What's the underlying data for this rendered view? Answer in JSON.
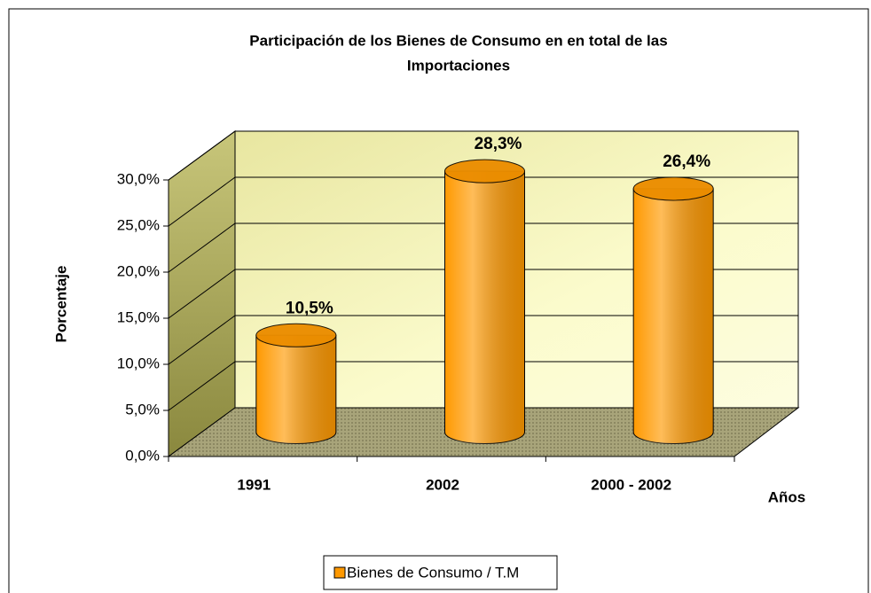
{
  "chart_data": {
    "type": "bar",
    "title": "Participación de los Bienes de Consumo en en total de las Importaciones",
    "categories": [
      "1991",
      "2002",
      "2000 - 2002"
    ],
    "series": [
      {
        "name": "Bienes de Consumo / T.M",
        "color": "#ff9900",
        "values": [
          10.5,
          28.3,
          26.4
        ],
        "value_labels": [
          "10,5%",
          "28,3%",
          "26,4%"
        ]
      }
    ],
    "ylim": [
      0,
      30
    ],
    "yticks": [
      {
        "value": 0,
        "label": "0,0%"
      },
      {
        "value": 5,
        "label": "5,0%"
      },
      {
        "value": 10,
        "label": "10,0%"
      },
      {
        "value": 15,
        "label": "15,0%"
      },
      {
        "value": 20,
        "label": "20,0%"
      },
      {
        "value": 25,
        "label": "25,0%"
      },
      {
        "value": 30,
        "label": "30,0%"
      }
    ],
    "y_label": "Porcentaje",
    "x_label": "Años",
    "grid": true,
    "legend": "bottom"
  }
}
